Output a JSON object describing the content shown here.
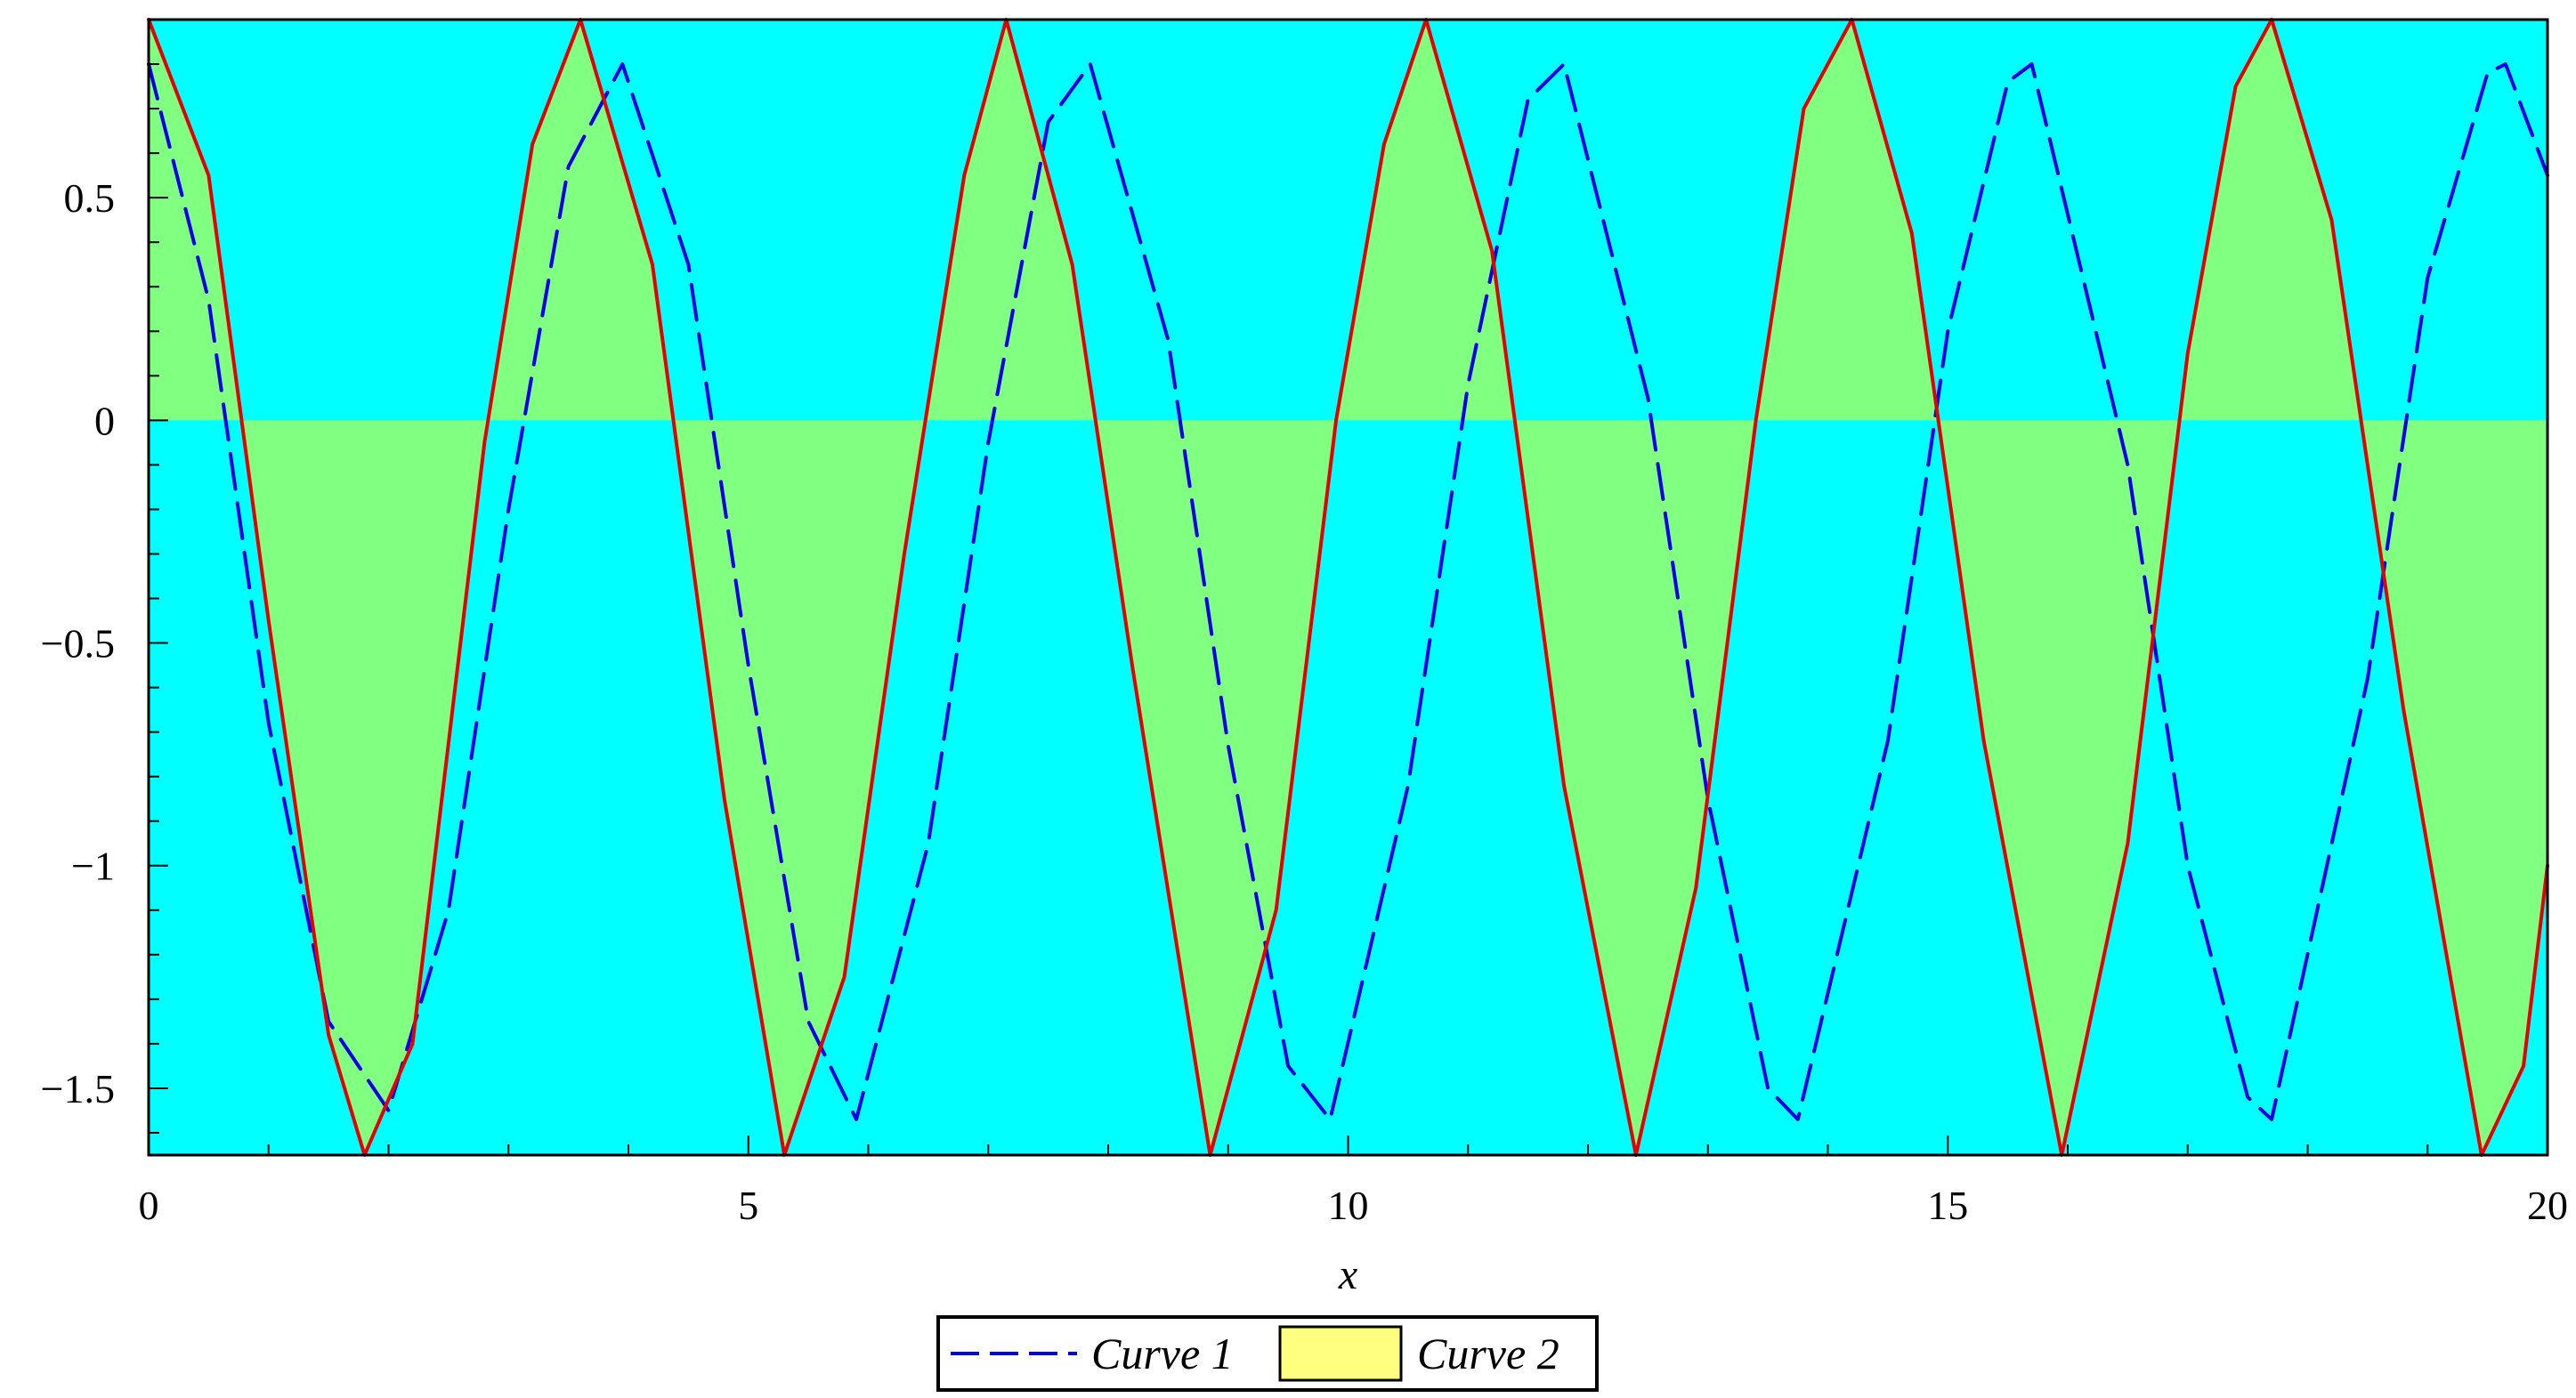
{
  "chart_data": {
    "type": "line",
    "title": "",
    "xlabel": "x",
    "ylabel": "",
    "xlim": [
      0,
      20
    ],
    "ylim": [
      -1.65,
      0.9
    ],
    "x_ticks": [
      0,
      5,
      10,
      15,
      20
    ],
    "x_tick_labels": [
      "0",
      "5",
      "10",
      "15",
      "20"
    ],
    "y_ticks": [
      0.5,
      0,
      -0.5,
      -1,
      -1.5
    ],
    "y_tick_labels": [
      "0.5",
      "0",
      "−0.5",
      "−1",
      "−1.5"
    ],
    "grid": false,
    "legend_position": "bottom-center",
    "colors": {
      "plot_background": "#00ffff",
      "fill_between": "#80ff80",
      "curve1": "#0000e6",
      "curve2": "#e60000",
      "legend_swatch": "#ffff80"
    },
    "series": [
      {
        "name": "Curve 1",
        "style": "dashed",
        "x": [
          0,
          0.5,
          1,
          1.5,
          2,
          2.5,
          3,
          3.5,
          3.95,
          4.5,
          5,
          5.5,
          5.9,
          6.5,
          7,
          7.5,
          7.85,
          8.5,
          9,
          9.5,
          9.85,
          10.5,
          11,
          11.5,
          11.8,
          12.5,
          13,
          13.5,
          13.75,
          14.5,
          15,
          15.5,
          15.7,
          16.5,
          17,
          17.5,
          17.7,
          18.5,
          19,
          19.5,
          19.65,
          20
        ],
        "y": [
          0.8,
          0.27,
          -0.68,
          -1.35,
          -1.55,
          -1.1,
          -0.2,
          0.57,
          0.8,
          0.35,
          -0.55,
          -1.35,
          -1.57,
          -0.95,
          -0.05,
          0.67,
          0.8,
          0.18,
          -0.73,
          -1.45,
          -1.57,
          -0.82,
          0.08,
          0.72,
          0.8,
          0.05,
          -0.85,
          -1.5,
          -1.57,
          -0.72,
          0.2,
          0.76,
          0.8,
          -0.1,
          -1.0,
          -1.52,
          -1.57,
          -0.58,
          0.32,
          0.78,
          0.8,
          0.55
        ]
      },
      {
        "name": "Curve 2",
        "style": "solid",
        "x": [
          0,
          0.5,
          1,
          1.5,
          1.8,
          2.2,
          2.8,
          3.2,
          3.6,
          4.2,
          4.8,
          5.3,
          5.8,
          6.3,
          6.8,
          7.15,
          7.7,
          8.2,
          8.85,
          9.4,
          9.9,
          10.3,
          10.65,
          11.2,
          11.8,
          12.4,
          12.9,
          13.4,
          13.8,
          14.2,
          14.7,
          15.3,
          15.95,
          16.5,
          17,
          17.4,
          17.7,
          18.2,
          18.8,
          19.45,
          19.8,
          20
        ],
        "y": [
          0.9,
          0.55,
          -0.45,
          -1.38,
          -1.65,
          -1.4,
          -0.05,
          0.62,
          0.9,
          0.35,
          -0.85,
          -1.65,
          -1.25,
          -0.3,
          0.55,
          0.9,
          0.35,
          -0.55,
          -1.65,
          -1.1,
          0.0,
          0.62,
          0.9,
          0.38,
          -0.82,
          -1.65,
          -1.05,
          0.0,
          0.7,
          0.9,
          0.42,
          -0.72,
          -1.65,
          -0.95,
          0.15,
          0.75,
          0.9,
          0.45,
          -0.65,
          -1.65,
          -1.45,
          -1.0
        ]
      }
    ],
    "legend": [
      {
        "label": "Curve 1",
        "marker": "dashed-line"
      },
      {
        "label": "Curve 2",
        "marker": "filled-box"
      }
    ]
  }
}
